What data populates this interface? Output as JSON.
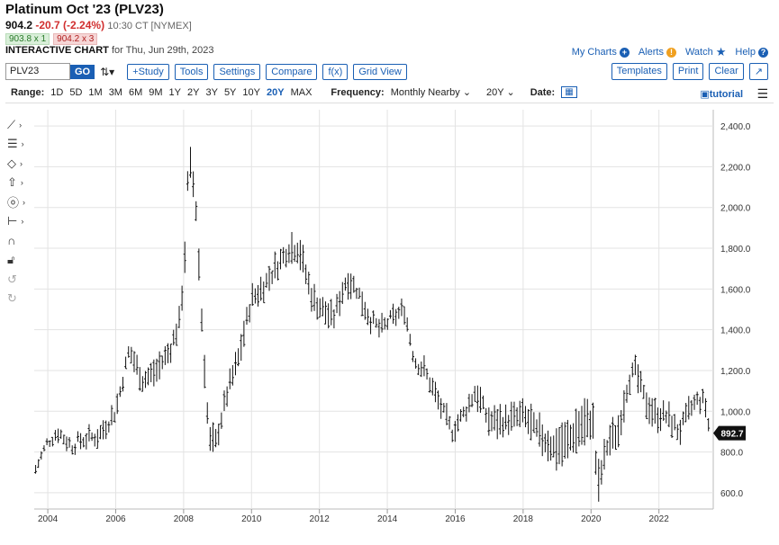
{
  "header": {
    "title": "Platinum Oct '23 (PLV23)",
    "price": "904.2",
    "change": "-20.7 (-2.24%)",
    "time": "10:30 CT [NYMEX]",
    "bid": "903.8 x 1",
    "ask": "904.2 x 3",
    "chart_label": "INTERACTIVE CHART",
    "chart_date": "for Thu, Jun 29th, 2023"
  },
  "top_links": {
    "my_charts": "My Charts",
    "alerts": "Alerts",
    "watch": "Watch",
    "help": "Help"
  },
  "toolbar": {
    "symbol": "PLV23",
    "go": "GO",
    "study": "+Study",
    "tools": "Tools",
    "settings": "Settings",
    "compare": "Compare",
    "fx": "f(x)",
    "grid_view": "Grid View",
    "templates": "Templates",
    "print": "Print",
    "clear": "Clear"
  },
  "rangebar": {
    "range_label": "Range:",
    "ranges": [
      "1D",
      "5D",
      "1M",
      "3M",
      "6M",
      "9M",
      "1Y",
      "2Y",
      "3Y",
      "5Y",
      "10Y",
      "20Y",
      "MAX"
    ],
    "selected": "20Y",
    "frequency_label": "Frequency:",
    "frequency": "Monthly Nearby",
    "period": "20Y",
    "date_label": "Date:",
    "tutorial": "tutorial"
  },
  "icons": {
    "left_tools": [
      "line-tool-icon",
      "fib-tool-icon",
      "shape-tool-icon",
      "arrow-tool-icon",
      "annotation-tool-icon",
      "measure-tool-icon",
      "magnet-icon",
      "lock-icon",
      "undo-icon",
      "redo-icon"
    ]
  },
  "colors": {
    "accent": "#1a5fb4",
    "down": "#d12f2f",
    "bars": "#111111"
  },
  "chart_data": {
    "type": "ohlc",
    "title": "",
    "xlabel": "",
    "ylabel": "",
    "ylim": [
      520,
      2480
    ],
    "xlim": [
      2003.6,
      2023.6
    ],
    "yticks": [
      600,
      800,
      1000,
      1200,
      1400,
      1600,
      1800,
      2000,
      2200,
      2400
    ],
    "ytick_labels": [
      "600.0",
      "800.0",
      "1,000.0",
      "1,200.0",
      "1,400.0",
      "1,600.0",
      "1,800.0",
      "2,000.0",
      "2,200.0",
      "2,400.0"
    ],
    "xticks": [
      2004,
      2006,
      2008,
      2010,
      2012,
      2014,
      2016,
      2018,
      2020,
      2022
    ],
    "xtick_labels": [
      "2004",
      "2006",
      "2008",
      "2010",
      "2012",
      "2014",
      "2016",
      "2018",
      "2020",
      "2022"
    ],
    "last_value": 892.7,
    "last_label": "892.7",
    "grid": true,
    "series": [
      {
        "anchors": [
          [
            2003.6,
            700
          ],
          [
            2004.0,
            850
          ],
          [
            2004.3,
            900
          ],
          [
            2004.7,
            830
          ],
          [
            2005.0,
            860
          ],
          [
            2005.5,
            880
          ],
          [
            2006.0,
            1000
          ],
          [
            2006.4,
            1300
          ],
          [
            2006.8,
            1150
          ],
          [
            2007.2,
            1200
          ],
          [
            2007.6,
            1300
          ],
          [
            2007.9,
            1450
          ],
          [
            2008.05,
            1800
          ],
          [
            2008.15,
            2250
          ],
          [
            2008.35,
            2050
          ],
          [
            2008.55,
            1400
          ],
          [
            2008.75,
            850
          ],
          [
            2008.95,
            850
          ],
          [
            2009.3,
            1100
          ],
          [
            2009.6,
            1250
          ],
          [
            2010.0,
            1550
          ],
          [
            2010.3,
            1600
          ],
          [
            2010.7,
            1700
          ],
          [
            2011.1,
            1800
          ],
          [
            2011.4,
            1800
          ],
          [
            2011.8,
            1550
          ],
          [
            2012.1,
            1500
          ],
          [
            2012.4,
            1450
          ],
          [
            2012.8,
            1650
          ],
          [
            2013.1,
            1600
          ],
          [
            2013.5,
            1450
          ],
          [
            2013.8,
            1400
          ],
          [
            2014.1,
            1450
          ],
          [
            2014.5,
            1500
          ],
          [
            2014.8,
            1250
          ],
          [
            2015.1,
            1200
          ],
          [
            2015.5,
            1050
          ],
          [
            2015.9,
            900
          ],
          [
            2016.3,
            1000
          ],
          [
            2016.6,
            1100
          ],
          [
            2017.0,
            950
          ],
          [
            2017.5,
            950
          ],
          [
            2018.0,
            980
          ],
          [
            2018.5,
            880
          ],
          [
            2018.9,
            820
          ],
          [
            2019.3,
            850
          ],
          [
            2019.7,
            930
          ],
          [
            2020.05,
            960
          ],
          [
            2020.2,
            620
          ],
          [
            2020.5,
            850
          ],
          [
            2020.8,
            900
          ],
          [
            2021.1,
            1150
          ],
          [
            2021.3,
            1200
          ],
          [
            2021.6,
            1050
          ],
          [
            2021.9,
            980
          ],
          [
            2022.2,
            980
          ],
          [
            2022.6,
            900
          ],
          [
            2022.9,
            1000
          ],
          [
            2023.1,
            1050
          ],
          [
            2023.35,
            1050
          ],
          [
            2023.49,
            900
          ]
        ],
        "ranges": [
          [
            2003.6,
            40
          ],
          [
            2008.0,
            110
          ],
          [
            2008.3,
            160
          ],
          [
            2008.6,
            140
          ],
          [
            2009.0,
            90
          ],
          [
            2011.6,
            120
          ],
          [
            2014.0,
            70
          ],
          [
            2016.0,
            80
          ],
          [
            2020.15,
            180
          ],
          [
            2020.5,
            120
          ],
          [
            2023.5,
            90
          ]
        ]
      }
    ]
  }
}
